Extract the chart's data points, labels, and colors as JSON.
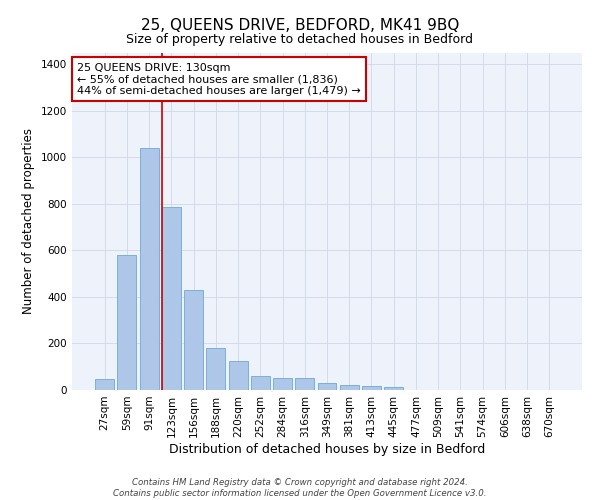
{
  "title": "25, QUEENS DRIVE, BEDFORD, MK41 9BQ",
  "subtitle": "Size of property relative to detached houses in Bedford",
  "xlabel": "Distribution of detached houses by size in Bedford",
  "ylabel": "Number of detached properties",
  "footer_line1": "Contains HM Land Registry data © Crown copyright and database right 2024.",
  "footer_line2": "Contains public sector information licensed under the Open Government Licence v3.0.",
  "categories": [
    "27sqm",
    "59sqm",
    "91sqm",
    "123sqm",
    "156sqm",
    "188sqm",
    "220sqm",
    "252sqm",
    "284sqm",
    "316sqm",
    "349sqm",
    "381sqm",
    "413sqm",
    "445sqm",
    "477sqm",
    "509sqm",
    "541sqm",
    "574sqm",
    "606sqm",
    "638sqm",
    "670sqm"
  ],
  "values": [
    48,
    578,
    1040,
    785,
    430,
    180,
    125,
    62,
    50,
    50,
    28,
    22,
    18,
    12,
    0,
    0,
    0,
    0,
    0,
    0,
    0
  ],
  "bar_color": "#aec6e8",
  "bar_edge_color": "#5a9fd4",
  "highlight_line_color": "#cc0000",
  "highlight_idx": 3,
  "annotation_line1": "25 QUEENS DRIVE: 130sqm",
  "annotation_line2": "← 55% of detached houses are smaller (1,836)",
  "annotation_line3": "44% of semi-detached houses are larger (1,479) →",
  "annotation_box_color": "#ffffff",
  "annotation_border_color": "#cc0000",
  "ylim": [
    0,
    1450
  ],
  "yticks": [
    0,
    200,
    400,
    600,
    800,
    1000,
    1200,
    1400
  ],
  "grid_color": "#d0d8e8",
  "bg_color": "#eef2fa",
  "title_fontsize": 11,
  "subtitle_fontsize": 9,
  "xlabel_fontsize": 9,
  "ylabel_fontsize": 8.5,
  "tick_fontsize": 7.5,
  "annotation_fontsize": 8
}
